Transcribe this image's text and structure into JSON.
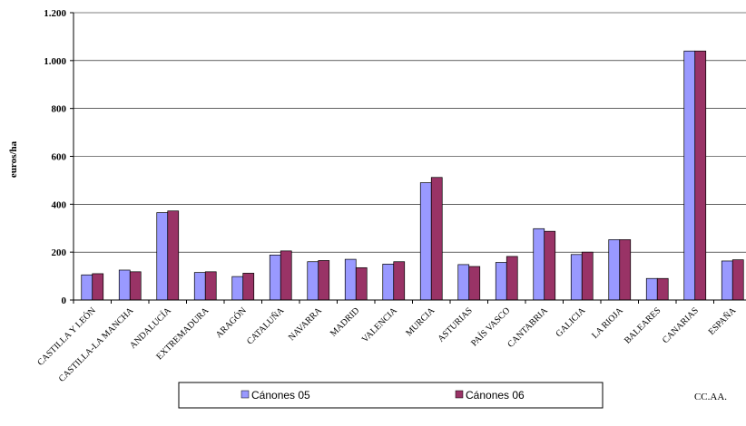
{
  "chart_data": {
    "type": "bar",
    "ylabel": "euros/ha",
    "xlabel": "CC.AA.",
    "ylim": [
      0,
      1200
    ],
    "yticks": [
      0,
      200,
      400,
      600,
      800,
      1000,
      1200
    ],
    "ytick_labels": [
      "0",
      "200",
      "400",
      "600",
      "800",
      "1.000",
      "1.200"
    ],
    "grid": true,
    "legend_position": "bottom",
    "categories": [
      "CASTILLA Y LEÓN",
      "CASTILLA-LA MANCHA",
      "ANDALUCÍA",
      "EXTREMADURA",
      "ARAGÓN",
      "CATALUÑA",
      "NAVARRA",
      "MADRID",
      "VALENCIA",
      "MURCIA",
      "ASTURIAS",
      "PAÍS VASCO",
      "CANTABRIA",
      "GALICIA",
      "LA RIOJA",
      "BALEARES",
      "CANARIAS",
      "ESPAÑA"
    ],
    "series": [
      {
        "name": "Cánones 05",
        "color": "#9999ff",
        "values": [
          105,
          125,
          365,
          115,
          98,
          188,
          160,
          170,
          150,
          490,
          148,
          157,
          298,
          190,
          252,
          90,
          1040,
          163
        ]
      },
      {
        "name": "Cánones 06",
        "color": "#993366",
        "values": [
          110,
          118,
          372,
          118,
          112,
          205,
          165,
          135,
          160,
          512,
          140,
          182,
          287,
          200,
          252,
          90,
          1040,
          168
        ]
      }
    ]
  }
}
